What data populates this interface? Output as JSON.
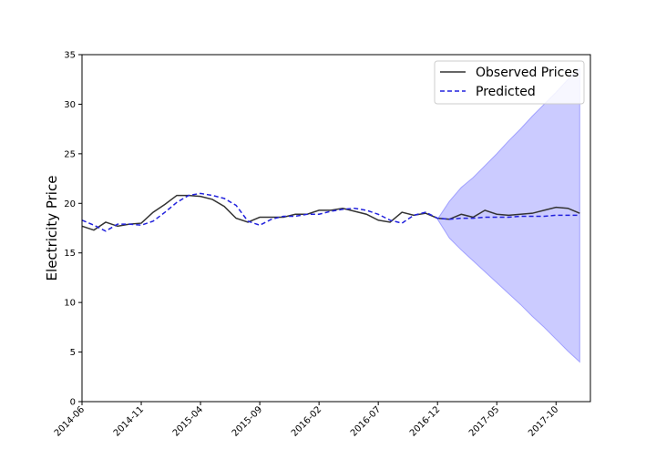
{
  "chart_data": {
    "type": "line",
    "title": "",
    "xlabel": "",
    "ylabel": "Electricity Price",
    "ylim": [
      0,
      35
    ],
    "y_ticks": [
      0,
      5,
      10,
      15,
      20,
      25,
      30,
      35
    ],
    "x_tick_labels": [
      "2014-06",
      "2014-11",
      "2015-04",
      "2015-09",
      "2016-02",
      "2016-07",
      "2016-12",
      "2017-05",
      "2017-10"
    ],
    "x": [
      "2014-06",
      "2014-07",
      "2014-08",
      "2014-09",
      "2014-10",
      "2014-11",
      "2014-12",
      "2015-01",
      "2015-02",
      "2015-03",
      "2015-04",
      "2015-05",
      "2015-06",
      "2015-07",
      "2015-08",
      "2015-09",
      "2015-10",
      "2015-11",
      "2015-12",
      "2016-01",
      "2016-02",
      "2016-03",
      "2016-04",
      "2016-05",
      "2016-06",
      "2016-07",
      "2016-08",
      "2016-09",
      "2016-10",
      "2016-11",
      "2016-12",
      "2017-01",
      "2017-02",
      "2017-03",
      "2017-04",
      "2017-05",
      "2017-06",
      "2017-07",
      "2017-08",
      "2017-09",
      "2017-10",
      "2017-11",
      "2017-12"
    ],
    "legend_position": "top-right",
    "grid": false,
    "series": [
      {
        "name": "Observed Prices",
        "color": "#333333",
        "style": "solid",
        "values": [
          17.7,
          17.3,
          18.1,
          17.7,
          17.9,
          18.0,
          19.1,
          19.9,
          20.8,
          20.8,
          20.7,
          20.4,
          19.7,
          18.5,
          18.1,
          18.6,
          18.6,
          18.6,
          18.9,
          18.9,
          19.3,
          19.3,
          19.5,
          19.2,
          18.9,
          18.3,
          18.1,
          19.1,
          18.8,
          19.0,
          18.5,
          18.4,
          18.9,
          18.6,
          19.3,
          18.9,
          18.8,
          18.9,
          19.0,
          19.3,
          19.6,
          19.5,
          19.0
        ]
      },
      {
        "name": "Predicted",
        "color": "#2222dd",
        "style": "dashed",
        "values": [
          18.3,
          17.8,
          17.2,
          17.9,
          17.9,
          17.8,
          18.2,
          19.1,
          20.1,
          20.8,
          21.0,
          20.8,
          20.5,
          19.8,
          18.2,
          17.8,
          18.4,
          18.7,
          18.7,
          18.9,
          18.9,
          19.2,
          19.4,
          19.5,
          19.3,
          18.9,
          18.3,
          18.0,
          18.8,
          19.1,
          18.5,
          18.4,
          18.5,
          18.5,
          18.6,
          18.6,
          18.6,
          18.7,
          18.7,
          18.7,
          18.8,
          18.8,
          18.8
        ]
      }
    ],
    "forecast_band": {
      "color": "#7777ff",
      "opacity": 0.38,
      "x": [
        "2016-12",
        "2017-01",
        "2017-02",
        "2017-03",
        "2017-04",
        "2017-05",
        "2017-06",
        "2017-07",
        "2017-08",
        "2017-09",
        "2017-10",
        "2017-11",
        "2017-12"
      ],
      "upper": [
        18.4,
        20.2,
        21.6,
        22.6,
        23.8,
        25.0,
        26.3,
        27.5,
        28.8,
        30.0,
        31.2,
        32.5,
        33.6
      ],
      "lower": [
        18.4,
        16.5,
        15.3,
        14.2,
        13.1,
        12.0,
        10.9,
        9.8,
        8.6,
        7.5,
        6.3,
        5.1,
        4.0
      ]
    }
  }
}
